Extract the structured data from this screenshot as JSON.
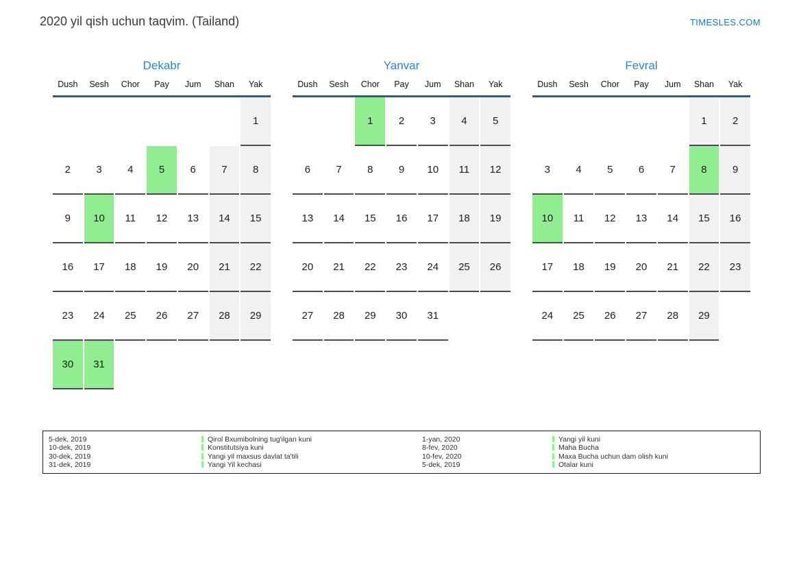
{
  "page": {
    "title": "2020 yil qish uchun taqvim. (Tailand)",
    "site_link": "TIMESLES.COM"
  },
  "colors": {
    "accent_blue": "#3383c4",
    "link_blue": "#2a72b8",
    "header_line_blue": "#2d5a87",
    "holiday_green": "#90ee90",
    "weekend_gray": "#f1f1f1",
    "cell_border_gray": "#4a4a4a"
  },
  "weekday_headers": [
    "Dush",
    "Sesh",
    "Chor",
    "Pay",
    "Jum",
    "Shan",
    "Yak"
  ],
  "weekend_columns": [
    5,
    6
  ],
  "months": [
    {
      "name": "Dekabr",
      "first_day_col": 6,
      "num_days": 31,
      "holidays": [
        5,
        10,
        30,
        31
      ]
    },
    {
      "name": "Yanvar",
      "first_day_col": 2,
      "num_days": 31,
      "holidays": [
        1
      ]
    },
    {
      "name": "Fevral",
      "first_day_col": 5,
      "num_days": 29,
      "holidays": [
        8,
        10
      ]
    }
  ],
  "legend": {
    "groups": [
      {
        "entries": [
          {
            "date": "5-dek, 2019",
            "name": "Qirol Bxumibolning tug'ilgan kuni"
          },
          {
            "date": "10-dek, 2019",
            "name": "Konstitutsiya kuni"
          },
          {
            "date": "30-dek, 2019",
            "name": "Yangi yil maxsus davlat ta'tili"
          },
          {
            "date": "31-dek, 2019",
            "name": "Yangi Yil kechasi"
          }
        ]
      },
      {
        "entries": [
          {
            "date": "1-yan, 2020",
            "name": "Yangi yil kuni"
          },
          {
            "date": "8-fev, 2020",
            "name": "Maha Bucha"
          },
          {
            "date": "10-fev, 2020",
            "name": "Maxa Bucha uchun dam olish kuni"
          },
          {
            "date": "5-dek, 2019",
            "name": "Otalar kuni"
          }
        ]
      }
    ]
  }
}
